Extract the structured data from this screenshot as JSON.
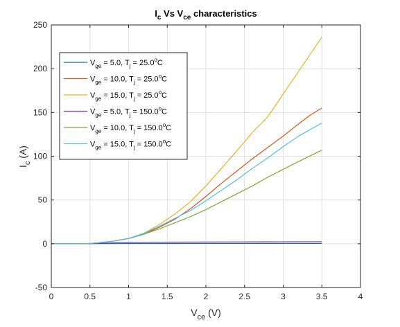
{
  "chart_data": {
    "type": "line",
    "title": {
      "main": "I",
      "main_sub": "c",
      "mid": " Vs V",
      "mid_sub": "ce",
      "end": " characteristics"
    },
    "xlabel": {
      "main": "V",
      "sub": "ce",
      "end": " (V)"
    },
    "ylabel": {
      "main": "I",
      "sub": "c",
      "end": " (A)"
    },
    "xlim": [
      0,
      4
    ],
    "ylim": [
      -50,
      250
    ],
    "xticks": [
      0,
      0.5,
      1,
      1.5,
      2,
      2.5,
      3,
      3.5,
      4
    ],
    "xtick_labels": [
      "0",
      "0.5",
      "1",
      "1.5",
      "2",
      "2.5",
      "3",
      "3.5",
      "4"
    ],
    "yticks": [
      -50,
      0,
      50,
      100,
      150,
      200,
      250
    ],
    "ytick_labels": [
      "-50",
      "0",
      "50",
      "100",
      "150",
      "200",
      "250"
    ],
    "grid": true,
    "legend_position": "top-left",
    "series": [
      {
        "legend": {
          "a": "V",
          "a_sub": "ge",
          "b": " = 5.0, T",
          "b_sub": "j",
          "c": " = 25.0",
          "c_sup": "o",
          "d": "C"
        },
        "color": "#0072BD",
        "x": [
          0,
          0.45,
          0.6,
          1.0,
          1.5,
          2.0,
          2.5,
          3.0,
          3.5
        ],
        "y": [
          0,
          0,
          0.1,
          0.2,
          0.2,
          0.3,
          0.3,
          0.3,
          0.3
        ]
      },
      {
        "legend": {
          "a": "V",
          "a_sub": "ge",
          "b": " = 10.0, T",
          "b_sub": "j",
          "c": " = 25.0",
          "c_sup": "o",
          "d": "C"
        },
        "color": "#D95319",
        "x": [
          0,
          0.45,
          0.6,
          0.8,
          1.0,
          1.2,
          1.4,
          1.6,
          1.8,
          2.0,
          2.2,
          2.4,
          2.6,
          2.8,
          3.0,
          3.2,
          3.35,
          3.5
        ],
        "y": [
          0,
          0,
          1,
          3,
          6,
          11,
          19,
          28,
          40,
          54,
          69,
          83,
          97,
          110,
          123,
          137,
          147,
          155
        ]
      },
      {
        "legend": {
          "a": "V",
          "a_sub": "ge",
          "b": " = 15.0, T",
          "b_sub": "j",
          "c": " = 25.0",
          "c_sup": "o",
          "d": "C"
        },
        "color": "#EDB120",
        "x": [
          0,
          0.45,
          0.6,
          0.8,
          1.0,
          1.2,
          1.4,
          1.6,
          1.8,
          2.0,
          2.2,
          2.4,
          2.6,
          2.8,
          2.9,
          3.1,
          3.3,
          3.5
        ],
        "y": [
          0,
          0,
          1,
          3,
          6,
          12,
          22,
          34,
          48,
          66,
          86,
          106,
          127,
          145,
          158,
          184,
          210,
          236
        ]
      },
      {
        "legend": {
          "a": "V",
          "a_sub": "ge",
          "b": " = 5.0, T",
          "b_sub": "j",
          "c": " = 150.0",
          "c_sup": "o",
          "d": "C"
        },
        "color": "#7E2F8E",
        "x": [
          0,
          0.45,
          0.6,
          0.8,
          1.0,
          1.2,
          1.5,
          2.0,
          2.5,
          3.0,
          3.5
        ],
        "y": [
          0,
          0,
          0.5,
          1.0,
          1.3,
          1.6,
          1.8,
          2.0,
          2.1,
          2.2,
          2.3
        ]
      },
      {
        "legend": {
          "a": "V",
          "a_sub": "ge",
          "b": " = 10.0, T",
          "b_sub": "j",
          "c": " = 150.0",
          "c_sup": "o",
          "d": "C"
        },
        "color": "#77AC30",
        "x": [
          0,
          0.45,
          0.6,
          0.8,
          1.0,
          1.2,
          1.4,
          1.6,
          1.8,
          2.0,
          2.2,
          2.4,
          2.6,
          2.8,
          3.0,
          3.2,
          3.5
        ],
        "y": [
          0,
          0,
          1,
          3,
          6,
          11,
          17,
          24,
          31,
          39,
          48,
          57,
          66,
          76,
          85,
          94,
          107
        ]
      },
      {
        "legend": {
          "a": "V",
          "a_sub": "ge",
          "b": " = 15.0, T",
          "b_sub": "j",
          "c": " = 150.0",
          "c_sup": "o",
          "d": "C"
        },
        "color": "#4DBEEE",
        "x": [
          0,
          0.45,
          0.6,
          0.8,
          1.0,
          1.2,
          1.4,
          1.6,
          1.8,
          2.0,
          2.2,
          2.4,
          2.6,
          2.8,
          3.0,
          3.2,
          3.5
        ],
        "y": [
          0,
          0,
          1,
          3,
          6,
          12,
          20,
          29,
          38,
          49,
          61,
          73,
          86,
          98,
          111,
          123,
          138
        ]
      }
    ]
  }
}
